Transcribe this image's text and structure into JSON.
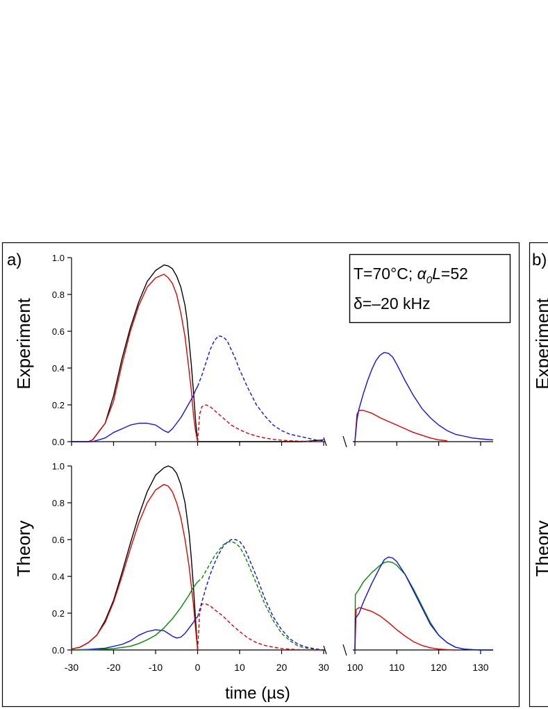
{
  "panels": {
    "a": {
      "label": "a)"
    },
    "b": {
      "label": "b)"
    }
  },
  "rows": {
    "experiment": {
      "label": "Experiment"
    },
    "theory": {
      "label": "Theory"
    }
  },
  "annotation": {
    "line1_prefix": "T=70°C; ",
    "alpha": "α",
    "zero": "0",
    "L": "L",
    "line1_suffix": "=52",
    "line2": "δ=–20 kHz"
  },
  "chart_data": [
    {
      "name": "experiment",
      "type": "line",
      "xlabel": "time (µs)",
      "ylabel": "Experiment",
      "ylim": [
        0,
        1.0
      ],
      "yticks": [
        0.0,
        0.2,
        0.4,
        0.6,
        0.8,
        1.0
      ],
      "ytick_labels": [
        "0.0",
        "0.2",
        "0.4",
        "0.6",
        "0.8",
        "1.0"
      ],
      "xlim_left": [
        -30,
        30
      ],
      "xlim_right": [
        100,
        133
      ],
      "series": [
        {
          "name": "black",
          "color": "#000000",
          "dash": false,
          "x": [
            -30,
            -26,
            -25,
            -22,
            -20,
            -18,
            -16,
            -14,
            -12,
            -10,
            -8,
            -7,
            -6,
            -5,
            -4,
            -3,
            -2.5,
            -2,
            -1.5,
            -1,
            -0.5,
            0,
            2,
            5,
            10,
            15,
            20,
            25,
            30
          ],
          "y": [
            0,
            0,
            0.01,
            0.1,
            0.25,
            0.45,
            0.62,
            0.76,
            0.87,
            0.93,
            0.96,
            0.955,
            0.94,
            0.9,
            0.84,
            0.74,
            0.66,
            0.54,
            0.42,
            0.28,
            0.12,
            0,
            0,
            0,
            0,
            0,
            0,
            0,
            0.01
          ]
        },
        {
          "name": "red",
          "color": "#e00000",
          "dash": false,
          "x": [
            -30,
            -26,
            -25,
            -22,
            -20,
            -18,
            -16,
            -14,
            -12,
            -10,
            -9,
            -8,
            -7,
            -6,
            -5,
            -4,
            -3,
            -2,
            -1.5,
            -1,
            -0.5,
            0
          ],
          "y": [
            0,
            0,
            0.01,
            0.1,
            0.22,
            0.42,
            0.6,
            0.74,
            0.84,
            0.89,
            0.9,
            0.91,
            0.89,
            0.86,
            0.8,
            0.7,
            0.57,
            0.38,
            0.28,
            0.15,
            0.06,
            0
          ]
        },
        {
          "name": "blue",
          "color": "#1010e0",
          "dash": false,
          "x": [
            -30,
            -25,
            -22,
            -20,
            -18,
            -16,
            -14,
            -12,
            -10,
            -8,
            -7,
            -6,
            -5,
            -4,
            -3,
            -2,
            -1,
            -0.5,
            0
          ],
          "y": [
            0,
            0,
            0.02,
            0.05,
            0.07,
            0.09,
            0.1,
            0.1,
            0.09,
            0.06,
            0.05,
            0.07,
            0.1,
            0.13,
            0.17,
            0.21,
            0.25,
            0.28,
            0.3
          ]
        },
        {
          "name": "red-dashed",
          "color": "#e00000",
          "dash": true,
          "x": [
            0,
            0.5,
            1,
            2,
            3,
            4,
            6,
            8,
            10,
            12,
            14,
            16,
            18,
            20,
            22,
            24,
            26,
            28,
            30
          ],
          "y": [
            0,
            0.15,
            0.19,
            0.2,
            0.19,
            0.17,
            0.13,
            0.09,
            0.065,
            0.045,
            0.03,
            0.02,
            0.013,
            0.008,
            0.005,
            0.003,
            0.002,
            0.001,
            0
          ]
        },
        {
          "name": "blue-dashed",
          "color": "#1010e0",
          "dash": true,
          "x": [
            0,
            1,
            2,
            3,
            4,
            5,
            6,
            7,
            8,
            9,
            10,
            12,
            14,
            16,
            18,
            20,
            22,
            24,
            26,
            28,
            30
          ],
          "y": [
            0.3,
            0.36,
            0.43,
            0.5,
            0.55,
            0.575,
            0.57,
            0.55,
            0.5,
            0.45,
            0.39,
            0.29,
            0.2,
            0.14,
            0.09,
            0.06,
            0.04,
            0.03,
            0.02,
            0.01,
            0.005
          ]
        },
        {
          "name": "red-late",
          "color": "#e00000",
          "dash": false,
          "x": [
            100,
            100.5,
            101,
            102,
            104,
            106,
            108,
            110,
            112,
            114,
            116,
            118,
            120,
            122
          ],
          "y": [
            0,
            0.15,
            0.17,
            0.17,
            0.155,
            0.13,
            0.11,
            0.09,
            0.07,
            0.05,
            0.035,
            0.02,
            0.01,
            0.005
          ]
        },
        {
          "name": "blue-late",
          "color": "#1010e0",
          "dash": false,
          "x": [
            100,
            100.5,
            101,
            102,
            103,
            104,
            105,
            106,
            107,
            108,
            109,
            110,
            112,
            114,
            116,
            118,
            120,
            122,
            124,
            126,
            128,
            130,
            133
          ],
          "y": [
            0,
            0.12,
            0.18,
            0.26,
            0.33,
            0.39,
            0.44,
            0.47,
            0.485,
            0.48,
            0.46,
            0.42,
            0.33,
            0.25,
            0.18,
            0.13,
            0.09,
            0.06,
            0.04,
            0.03,
            0.02,
            0.015,
            0.01
          ]
        }
      ]
    },
    {
      "name": "theory",
      "type": "line",
      "xlabel": "time (µs)",
      "ylabel": "Theory",
      "ylim": [
        0,
        1.0
      ],
      "yticks": [
        0.0,
        0.2,
        0.4,
        0.6,
        0.8,
        1.0
      ],
      "ytick_labels": [
        "0.0",
        "0.2",
        "0.4",
        "0.6",
        "0.8",
        "1.0"
      ],
      "xlim_left": [
        -30,
        30
      ],
      "xlim_right": [
        100,
        133
      ],
      "xticks_left": [
        -30,
        -20,
        -10,
        0,
        10,
        20,
        30
      ],
      "xtick_labels_left": [
        "-30",
        "-20",
        "-10",
        "0",
        "10",
        "20",
        "30"
      ],
      "xticks_right": [
        100,
        110,
        120,
        130
      ],
      "xtick_labels_right": [
        "100",
        "110",
        "120",
        "130"
      ],
      "series": [
        {
          "name": "black",
          "color": "#000000",
          "dash": false,
          "x": [
            -30,
            -28,
            -26,
            -24,
            -22,
            -20,
            -18,
            -16,
            -14,
            -12,
            -10,
            -8,
            -7,
            -6,
            -5,
            -4,
            -3,
            -2,
            -1.5,
            -1,
            -0.5,
            0
          ],
          "y": [
            0.005,
            0.015,
            0.04,
            0.08,
            0.16,
            0.27,
            0.42,
            0.58,
            0.73,
            0.86,
            0.95,
            0.99,
            1.0,
            0.99,
            0.96,
            0.9,
            0.8,
            0.63,
            0.5,
            0.35,
            0.17,
            0
          ]
        },
        {
          "name": "red",
          "color": "#e00000",
          "dash": false,
          "x": [
            -30,
            -28,
            -26,
            -24,
            -22,
            -20,
            -18,
            -16,
            -14,
            -12,
            -10,
            -8,
            -7,
            -6,
            -5,
            -4,
            -3,
            -2,
            -1,
            -0.5,
            0
          ],
          "y": [
            0.005,
            0.015,
            0.04,
            0.08,
            0.15,
            0.26,
            0.4,
            0.55,
            0.69,
            0.8,
            0.87,
            0.9,
            0.89,
            0.86,
            0.8,
            0.72,
            0.6,
            0.45,
            0.25,
            0.12,
            0
          ]
        },
        {
          "name": "blue",
          "color": "#1010e0",
          "dash": false,
          "x": [
            -30,
            -26,
            -22,
            -18,
            -16,
            -14,
            -12,
            -10,
            -8,
            -7,
            -6,
            -5,
            -4,
            -3,
            -2,
            -1,
            -0.5,
            0
          ],
          "y": [
            0,
            0.003,
            0.01,
            0.03,
            0.05,
            0.08,
            0.1,
            0.11,
            0.105,
            0.09,
            0.075,
            0.065,
            0.07,
            0.09,
            0.12,
            0.15,
            0.17,
            0.18
          ]
        },
        {
          "name": "green",
          "color": "#008800",
          "dash": false,
          "x": [
            -30,
            -24,
            -20,
            -16,
            -14,
            -12,
            -10,
            -8,
            -6,
            -4,
            -2,
            -1,
            0
          ],
          "y": [
            0,
            0.002,
            0.007,
            0.02,
            0.035,
            0.055,
            0.08,
            0.12,
            0.17,
            0.23,
            0.3,
            0.34,
            0.37
          ]
        },
        {
          "name": "red-dashed",
          "color": "#e00000",
          "dash": true,
          "x": [
            0,
            0.5,
            1,
            2,
            3,
            4,
            6,
            8,
            10,
            12,
            14,
            16,
            18,
            20,
            22,
            24,
            26,
            28,
            30
          ],
          "y": [
            0,
            0.2,
            0.25,
            0.25,
            0.24,
            0.22,
            0.185,
            0.14,
            0.1,
            0.065,
            0.04,
            0.025,
            0.015,
            0.008,
            0.004,
            0.002,
            0.001,
            0,
            0
          ]
        },
        {
          "name": "green-dashed",
          "color": "#008800",
          "dash": true,
          "x": [
            0,
            1,
            2,
            3,
            4,
            5,
            6,
            7,
            8,
            9,
            10,
            11,
            12,
            14,
            16,
            18,
            20,
            22,
            24,
            26,
            28,
            30
          ],
          "y": [
            0.37,
            0.39,
            0.43,
            0.47,
            0.51,
            0.54,
            0.57,
            0.585,
            0.59,
            0.58,
            0.56,
            0.52,
            0.47,
            0.36,
            0.25,
            0.16,
            0.09,
            0.05,
            0.02,
            0.01,
            0.004,
            0
          ]
        },
        {
          "name": "blue-dashed",
          "color": "#1010e0",
          "dash": true,
          "x": [
            0,
            1,
            2,
            3,
            4,
            5,
            6,
            7,
            8,
            9,
            10,
            11,
            12,
            14,
            16,
            18,
            20,
            22,
            24,
            26,
            28,
            30
          ],
          "y": [
            0.18,
            0.26,
            0.34,
            0.41,
            0.47,
            0.52,
            0.56,
            0.585,
            0.6,
            0.6,
            0.59,
            0.56,
            0.51,
            0.4,
            0.28,
            0.18,
            0.11,
            0.06,
            0.03,
            0.015,
            0.006,
            0
          ]
        },
        {
          "name": "red-late",
          "color": "#e00000",
          "dash": false,
          "x": [
            100,
            100.3,
            101,
            102,
            104,
            106,
            108,
            110,
            112,
            114,
            116,
            118,
            120,
            122,
            124
          ],
          "y": [
            0,
            0.22,
            0.23,
            0.225,
            0.21,
            0.185,
            0.15,
            0.11,
            0.075,
            0.045,
            0.025,
            0.012,
            0.005,
            0.002,
            0
          ]
        },
        {
          "name": "green-late",
          "color": "#008800",
          "dash": false,
          "x": [
            100,
            100.1,
            101,
            102,
            104,
            106,
            107,
            108,
            109,
            110,
            112,
            114,
            116,
            118,
            120,
            122,
            124,
            126,
            128,
            130,
            133
          ],
          "y": [
            0,
            0.3,
            0.33,
            0.37,
            0.42,
            0.46,
            0.475,
            0.48,
            0.475,
            0.46,
            0.41,
            0.33,
            0.24,
            0.15,
            0.08,
            0.04,
            0.015,
            0.005,
            0.002,
            0,
            0
          ]
        },
        {
          "name": "blue-late",
          "color": "#1010e0",
          "dash": false,
          "x": [
            100,
            100.1,
            101,
            102,
            104,
            106,
            107,
            108,
            109,
            110,
            112,
            114,
            116,
            118,
            120,
            122,
            124,
            126,
            128,
            130,
            133
          ],
          "y": [
            0,
            0.17,
            0.2,
            0.26,
            0.36,
            0.45,
            0.49,
            0.505,
            0.5,
            0.48,
            0.41,
            0.32,
            0.23,
            0.14,
            0.08,
            0.04,
            0.015,
            0.005,
            0.002,
            0,
            0
          ]
        }
      ]
    }
  ]
}
